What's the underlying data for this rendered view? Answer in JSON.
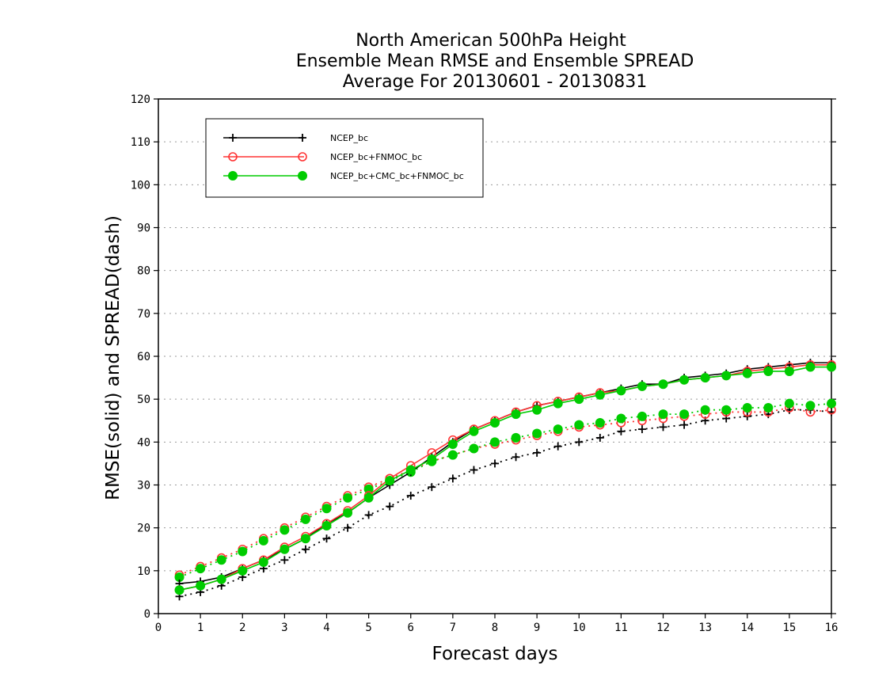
{
  "chart_data": {
    "type": "line",
    "title_lines": [
      "North American 500hPa Height",
      "Ensemble Mean RMSE and Ensemble SPREAD",
      "Average For 20130601 - 20130831"
    ],
    "xlabel": "Forecast days",
    "ylabel": "RMSE(solid) and SPREAD(dash)",
    "xlim": [
      0,
      16
    ],
    "ylim": [
      0,
      120
    ],
    "xticks": [
      0,
      1,
      2,
      3,
      4,
      5,
      6,
      7,
      8,
      9,
      10,
      11,
      12,
      13,
      14,
      15,
      16
    ],
    "yticks": [
      0,
      10,
      20,
      30,
      40,
      50,
      60,
      70,
      80,
      90,
      100,
      110,
      120
    ],
    "grid": "horizontal dotted",
    "legend_position": "top-left",
    "x": [
      0.5,
      1,
      1.5,
      2,
      2.5,
      3,
      3.5,
      4,
      4.5,
      5,
      5.5,
      6,
      6.5,
      7,
      7.5,
      8,
      8.5,
      9,
      9.5,
      10,
      10.5,
      11,
      11.5,
      12,
      12.5,
      13,
      13.5,
      14,
      14.5,
      15,
      15.5,
      16
    ],
    "series": [
      {
        "name": "NCEP_bc",
        "metric": "RMSE",
        "style": "solid",
        "marker": "plus",
        "color": "#000000",
        "values": [
          7,
          7.5,
          8.5,
          10.5,
          12.5,
          15,
          17.5,
          21,
          23.5,
          27,
          30,
          33,
          36.5,
          40,
          43,
          45,
          47,
          48.5,
          49.5,
          50.5,
          51.5,
          52.5,
          53.5,
          53.5,
          55,
          55.5,
          56,
          57,
          57.5,
          58,
          58.5,
          58.5
        ]
      },
      {
        "name": "NCEP_bc+FNMOC_bc",
        "metric": "RMSE",
        "style": "solid",
        "marker": "open-circle",
        "color": "#ff3333",
        "values": [
          5.5,
          6.5,
          8,
          10.5,
          12.5,
          15.5,
          18,
          21,
          24,
          27.5,
          31.5,
          34.5,
          37.5,
          40.5,
          43,
          45,
          47,
          48.5,
          49.5,
          50.5,
          51.5,
          52,
          53,
          53.5,
          54.5,
          55,
          55.5,
          56.5,
          57,
          57.5,
          58,
          58
        ]
      },
      {
        "name": "NCEP_bc+CMC_bc+FNMOC_bc",
        "metric": "RMSE",
        "style": "solid",
        "marker": "filled-circle",
        "color": "#00cc00",
        "values": [
          5.5,
          6.5,
          8,
          10,
          12,
          15,
          17.5,
          20.5,
          23.5,
          27,
          31,
          33.5,
          36,
          39.5,
          42.5,
          44.5,
          46.5,
          47.5,
          49,
          50,
          51,
          52,
          53,
          53.5,
          54.5,
          55,
          55.5,
          56,
          56.5,
          56.5,
          57.5,
          57.5
        ]
      },
      {
        "name": "NCEP_bc",
        "metric": "SPREAD",
        "style": "dash",
        "marker": "plus",
        "color": "#000000",
        "values": [
          4,
          5,
          6.5,
          8.5,
          10.5,
          12.5,
          15,
          17.5,
          20,
          23,
          25,
          27.5,
          29.5,
          31.5,
          33.5,
          35,
          36.5,
          37.5,
          39,
          40,
          41,
          42.5,
          43,
          43.5,
          44,
          45,
          45.5,
          46,
          46.5,
          47.5,
          47.5,
          47
        ]
      },
      {
        "name": "NCEP_bc+FNMOC_bc",
        "metric": "SPREAD",
        "style": "dash",
        "marker": "open-circle",
        "color": "#ff3333",
        "values": [
          9,
          11,
          13,
          15,
          17.5,
          20,
          22.5,
          25,
          27.5,
          29.5,
          31.5,
          33.5,
          35.5,
          37,
          38.5,
          39.5,
          40.5,
          41.5,
          42.5,
          43.5,
          44,
          44.5,
          45,
          45.5,
          46,
          46.5,
          47,
          47,
          47,
          48,
          47,
          47.5
        ]
      },
      {
        "name": "NCEP_bc+CMC_bc+FNMOC_bc",
        "metric": "SPREAD",
        "style": "dash",
        "marker": "filled-circle",
        "color": "#00cc00",
        "values": [
          8.5,
          10.5,
          12.5,
          14.5,
          17,
          19.5,
          22,
          24.5,
          27,
          29,
          31,
          33,
          35.5,
          37,
          38.5,
          40,
          41,
          42,
          43,
          44,
          44.5,
          45.5,
          46,
          46.5,
          46.5,
          47.5,
          47.5,
          48,
          48,
          49,
          48.5,
          49
        ]
      }
    ],
    "legend": [
      {
        "label": "NCEP_bc",
        "color": "#000000",
        "marker": "plus"
      },
      {
        "label": "NCEP_bc+FNMOC_bc",
        "color": "#ff3333",
        "marker": "open-circle"
      },
      {
        "label": "NCEP_bc+CMC_bc+FNMOC_bc",
        "color": "#00cc00",
        "marker": "filled-circle"
      }
    ]
  }
}
